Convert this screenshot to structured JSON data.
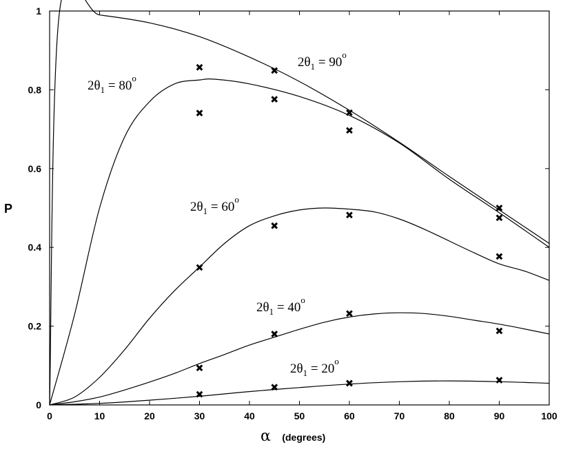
{
  "chart_data": {
    "type": "line",
    "xlabel_symbol": "α",
    "xlabel_units": "(degrees)",
    "ylabel": "P",
    "xlim": [
      0,
      100
    ],
    "ylim": [
      0,
      1
    ],
    "xticks": [
      "0",
      "10",
      "20",
      "30",
      "40",
      "50",
      "60",
      "70",
      "80",
      "90",
      "100"
    ],
    "yticks": [
      "0",
      "0.2",
      "0.4",
      "0.6",
      "0.8",
      "1"
    ],
    "grid": false,
    "legend": "none",
    "annotations": [
      {
        "prefix": "2θ",
        "sub": "1",
        "mid": " = 90",
        "sup": "o"
      },
      {
        "prefix": "2θ",
        "sub": "1",
        "mid": " = 80",
        "sup": "o"
      },
      {
        "prefix": "2θ",
        "sub": "1",
        "mid": " = 60",
        "sup": "o"
      },
      {
        "prefix": "2θ",
        "sub": "1",
        "mid": " = 40",
        "sup": "o"
      },
      {
        "prefix": "2θ",
        "sub": "1",
        "mid": " = 20",
        "sup": "o"
      }
    ],
    "series": [
      {
        "theta_deg": 90,
        "x": [
          0,
          2,
          10,
          20,
          30,
          40,
          50,
          60,
          70,
          80,
          90,
          100
        ],
        "y": [
          0,
          1.0,
          0.99,
          0.97,
          0.935,
          0.883,
          0.821,
          0.748,
          0.667,
          0.58,
          0.495,
          0.41
        ]
      },
      {
        "theta_deg": 80,
        "x": [
          0,
          5,
          10,
          15,
          20,
          25,
          30,
          33,
          40,
          50,
          60,
          70,
          80,
          90,
          100
        ],
        "y": [
          0,
          0.23,
          0.5,
          0.68,
          0.77,
          0.815,
          0.825,
          0.827,
          0.815,
          0.783,
          0.735,
          0.665,
          0.573,
          0.488,
          0.4
        ]
      },
      {
        "theta_deg": 60,
        "x": [
          0,
          5,
          10,
          15,
          20,
          25,
          30,
          35,
          40,
          45,
          50,
          55,
          60,
          65,
          70,
          75,
          80,
          85,
          90,
          95,
          100
        ],
        "y": [
          0,
          0.02,
          0.07,
          0.14,
          0.22,
          0.29,
          0.35,
          0.41,
          0.455,
          0.48,
          0.495,
          0.5,
          0.497,
          0.49,
          0.472,
          0.446,
          0.416,
          0.386,
          0.358,
          0.34,
          0.316
        ]
      },
      {
        "theta_deg": 40,
        "x": [
          0,
          5,
          10,
          15,
          20,
          25,
          30,
          35,
          40,
          45,
          50,
          55,
          60,
          65,
          70,
          75,
          80,
          85,
          90,
          95,
          100
        ],
        "y": [
          0,
          0.008,
          0.02,
          0.038,
          0.058,
          0.08,
          0.105,
          0.128,
          0.152,
          0.172,
          0.192,
          0.21,
          0.223,
          0.231,
          0.234,
          0.232,
          0.225,
          0.215,
          0.205,
          0.193,
          0.18
        ]
      },
      {
        "theta_deg": 20,
        "x": [
          0,
          10,
          20,
          30,
          40,
          50,
          60,
          70,
          80,
          90,
          100
        ],
        "y": [
          0,
          0.004,
          0.012,
          0.022,
          0.034,
          0.044,
          0.053,
          0.059,
          0.061,
          0.059,
          0.055
        ]
      }
    ],
    "measurements": {
      "x": [
        30,
        30,
        30,
        30,
        30,
        45,
        45,
        45,
        45,
        45,
        60,
        60,
        60,
        60,
        60,
        60,
        90,
        90,
        90,
        90,
        90
      ],
      "y": [
        0.857,
        0.741,
        0.349,
        0.094,
        0.027,
        0.849,
        0.776,
        0.455,
        0.18,
        0.045,
        0.742,
        0.697,
        0.482,
        0.232,
        0.055,
        0.055,
        0.5,
        0.475,
        0.377,
        0.188,
        0.063
      ]
    }
  }
}
